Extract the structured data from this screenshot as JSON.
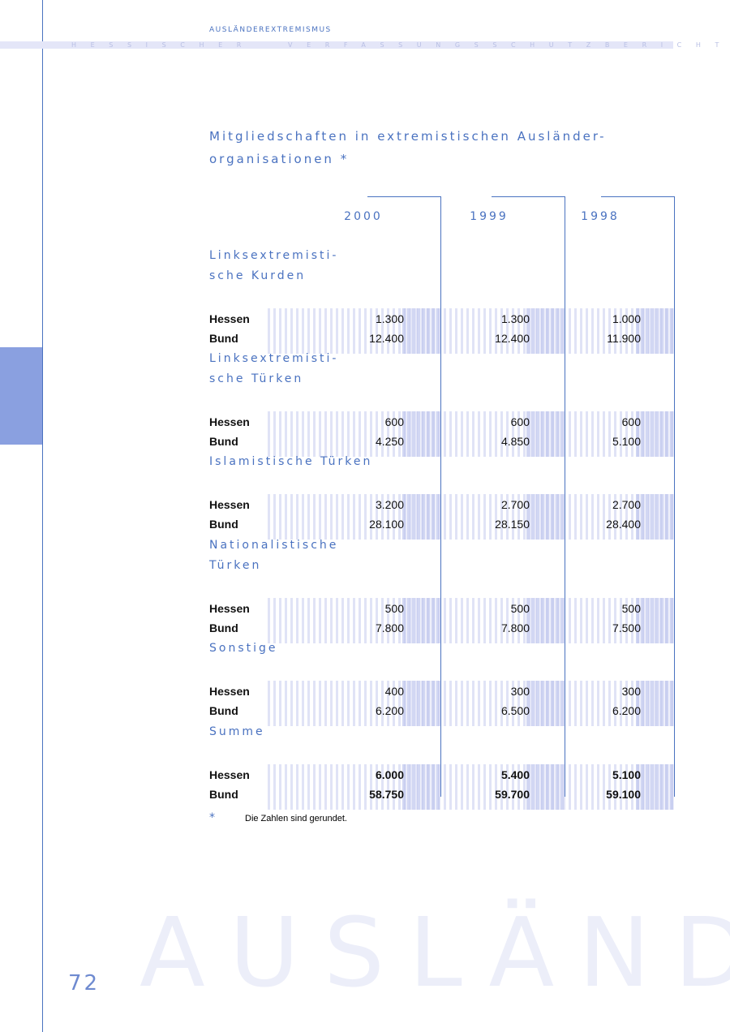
{
  "header": {
    "section": "AUSLÄNDEREXTREMISMUS",
    "report": "HESSISCHER VERFASSUNGSSCHUTZBERICHT 2000"
  },
  "title": [
    "Mitgliedschaften in extremistischen Ausländer-",
    "organisationen *"
  ],
  "table": {
    "columns": [
      "2000",
      "1999",
      "1998"
    ],
    "groups": [
      {
        "label": [
          "Linksextremisti-",
          "sche Kurden"
        ],
        "rows": [
          {
            "label": "Hessen",
            "values": [
              "1.300",
              "1.300",
              "1.000"
            ]
          },
          {
            "label": "Bund",
            "values": [
              "12.400",
              "12.400",
              "11.900"
            ]
          }
        ]
      },
      {
        "label": [
          "Linksextremisti-",
          "sche Türken"
        ],
        "rows": [
          {
            "label": "Hessen",
            "values": [
              "600",
              "600",
              "600"
            ]
          },
          {
            "label": "Bund",
            "values": [
              "4.250",
              "4.850",
              "5.100"
            ]
          }
        ]
      },
      {
        "label": [
          "Islamistische Türken"
        ],
        "rows": [
          {
            "label": "Hessen",
            "values": [
              "3.200",
              "2.700",
              "2.700"
            ]
          },
          {
            "label": "Bund",
            "values": [
              "28.100",
              "28.150",
              "28.400"
            ]
          }
        ]
      },
      {
        "label": [
          "Nationalistische",
          "Türken"
        ],
        "rows": [
          {
            "label": "Hessen",
            "values": [
              "500",
              "500",
              "500"
            ]
          },
          {
            "label": "Bund",
            "values": [
              "7.800",
              "7.800",
              "7.500"
            ]
          }
        ]
      },
      {
        "label": [
          "Sonstige"
        ],
        "rows": [
          {
            "label": "Hessen",
            "values": [
              "400",
              "300",
              "300"
            ]
          },
          {
            "label": "Bund",
            "values": [
              "6.200",
              "6.500",
              "6.200"
            ]
          }
        ]
      },
      {
        "label": [
          "Summe"
        ],
        "rows": [
          {
            "label": "Hessen",
            "values": [
              "6.000",
              "5.400",
              "5.100"
            ]
          },
          {
            "label": "Bund",
            "values": [
              "58.750",
              "59.700",
              "59.100"
            ]
          }
        ]
      }
    ]
  },
  "footnote": {
    "marker": "*",
    "text": "Die Zahlen sind gerundet."
  },
  "page_number": "72",
  "watermark": "AUSLÄNDER"
}
